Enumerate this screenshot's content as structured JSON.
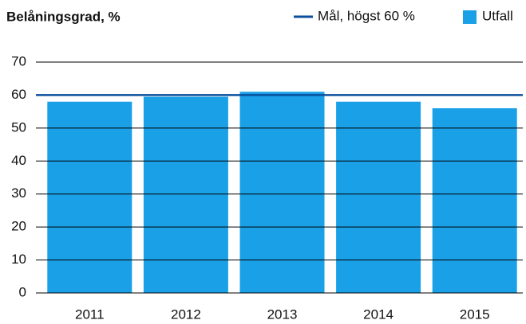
{
  "chart_data": {
    "type": "bar",
    "title": "Belåningsgrad, %",
    "categories": [
      "2011",
      "2012",
      "2013",
      "2014",
      "2015"
    ],
    "series": [
      {
        "name": "Utfall",
        "color": "#1aa0e6",
        "values": [
          58,
          59.5,
          61,
          58,
          56
        ]
      }
    ],
    "target": {
      "name": "Mål, högst 60 %",
      "value": 60,
      "color": "#0b4f9c"
    },
    "ylim": [
      0,
      70
    ],
    "yticks": [
      0,
      10,
      20,
      30,
      40,
      50,
      60,
      70
    ],
    "grid": true
  }
}
